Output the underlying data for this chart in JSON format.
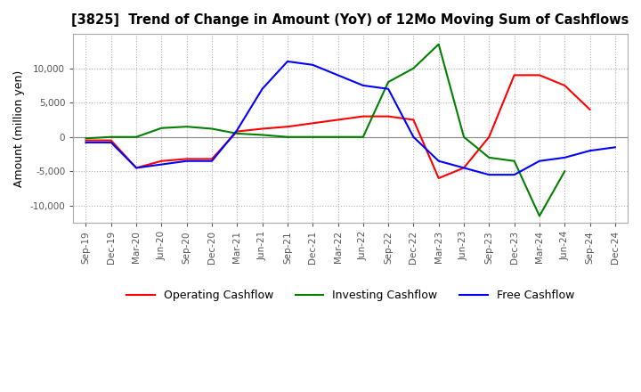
{
  "title": "[3825]  Trend of Change in Amount (YoY) of 12Mo Moving Sum of Cashflows",
  "ylabel": "Amount (million yen)",
  "ylim": [
    -12500,
    15000
  ],
  "yticks": [
    -10000,
    -5000,
    0,
    5000,
    10000
  ],
  "x_labels": [
    "Sep-19",
    "Dec-19",
    "Mar-20",
    "Jun-20",
    "Sep-20",
    "Dec-20",
    "Mar-21",
    "Jun-21",
    "Sep-21",
    "Dec-21",
    "Mar-22",
    "Jun-22",
    "Sep-22",
    "Dec-22",
    "Mar-23",
    "Jun-23",
    "Sep-23",
    "Dec-23",
    "Mar-24",
    "Jun-24",
    "Sep-24",
    "Dec-24"
  ],
  "operating": [
    -500,
    -500,
    -4500,
    -3500,
    -3200,
    -3200,
    800,
    1200,
    1500,
    2000,
    2500,
    3000,
    3000,
    2500,
    -6000,
    -4500,
    0,
    9000,
    9000,
    7500,
    4000,
    null
  ],
  "investing": [
    -200,
    0,
    0,
    1300,
    1500,
    1200,
    500,
    300,
    0,
    0,
    0,
    0,
    8000,
    10000,
    13500,
    0,
    -3000,
    -3500,
    -11500,
    -5000,
    null,
    null
  ],
  "free": [
    -800,
    -800,
    -4500,
    -4000,
    -3500,
    -3500,
    1000,
    7000,
    11000,
    10500,
    9000,
    7500,
    7000,
    0,
    -3500,
    -4500,
    -5500,
    -5500,
    -3500,
    -3000,
    -2000,
    -1500
  ],
  "colors": {
    "operating": "#ff0000",
    "investing": "#008000",
    "free": "#0000ff"
  },
  "legend_labels": [
    "Operating Cashflow",
    "Investing Cashflow",
    "Free Cashflow"
  ],
  "background_color": "#ffffff",
  "grid_color": "#b0b0b0"
}
